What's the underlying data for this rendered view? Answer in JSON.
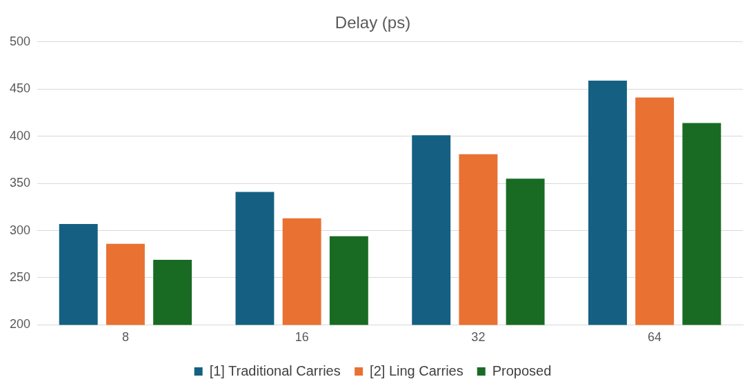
{
  "chart_data": {
    "type": "bar",
    "title": "Delay (ps)",
    "categories": [
      "8",
      "16",
      "32",
      "64"
    ],
    "series": [
      {
        "name": "[1] Traditional Carries",
        "color": "#156082",
        "values": [
          307,
          341,
          401,
          459
        ]
      },
      {
        "name": "[2] Ling Carries",
        "color": "#e97132",
        "values": [
          286,
          313,
          381,
          441
        ]
      },
      {
        "name": "Proposed",
        "color": "#196b24",
        "values": [
          269,
          294,
          355,
          414
        ]
      }
    ],
    "ylim": [
      200,
      500
    ],
    "yticks": [
      200,
      250,
      300,
      350,
      400,
      450,
      500
    ],
    "grid": "y",
    "legend": "bottom"
  }
}
